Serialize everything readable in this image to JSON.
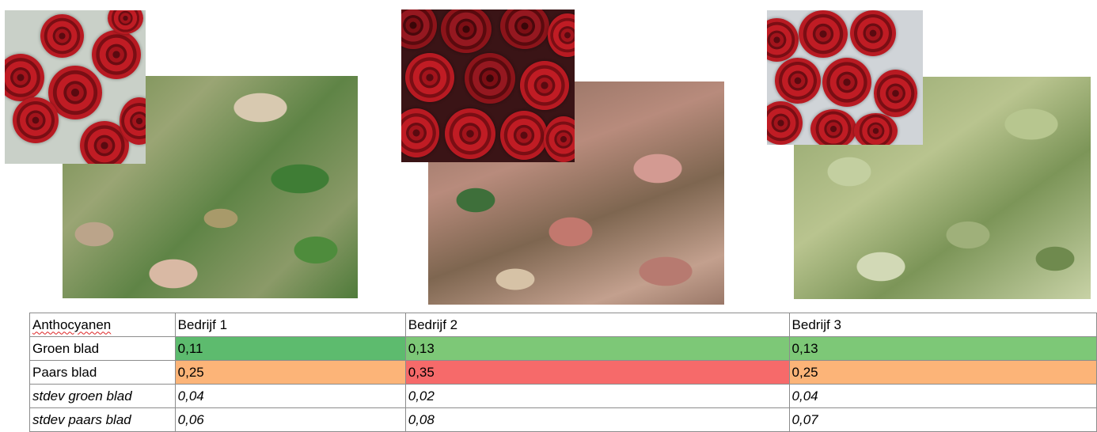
{
  "photos": {
    "roses_alt": "red roses bouquet",
    "leaves_alt": "rose stems with leaves"
  },
  "colors": {
    "green_dark": "#5dbb6e",
    "green_light": "#7dc877",
    "orange": "#fcb478",
    "red": "#f66a6a"
  },
  "table": {
    "header": [
      "Anthocyanen",
      "Bedrijf 1",
      "Bedrijf 2",
      "Bedrijf 3"
    ],
    "rows": [
      {
        "label": "Groen blad",
        "values": [
          "0,11",
          "0,13",
          "0,13"
        ]
      },
      {
        "label": "Paars blad",
        "values": [
          "0,25",
          "0,35",
          "0,25"
        ]
      },
      {
        "label": "stdev groen blad",
        "values": [
          "0,04",
          "0,02",
          "0,04"
        ]
      },
      {
        "label": "stdev paars blad",
        "values": [
          "0,06",
          "0,08",
          "0,07"
        ]
      }
    ]
  }
}
